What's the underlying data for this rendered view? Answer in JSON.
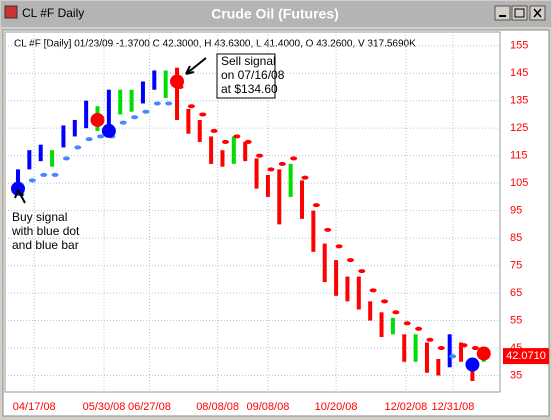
{
  "window_title": "CL #F Daily",
  "chart_data": {
    "type": "ohlc",
    "title": "Crude Oil (Futures)",
    "info": "CL #F [Daily] 01/23/09 -1.3700 C 42.3000, H 43.6300, L 41.4000, O 43.2600, V 317.5690K",
    "x": [
      "2008-04-07",
      "2008-04-14",
      "2008-04-21",
      "2008-04-28",
      "2008-05-05",
      "2008-05-12",
      "2008-05-19",
      "2008-05-26",
      "2008-06-02",
      "2008-06-09",
      "2008-06-16",
      "2008-06-23",
      "2008-06-30",
      "2008-07-07",
      "2008-07-14",
      "2008-07-21",
      "2008-07-28",
      "2008-08-04",
      "2008-08-11",
      "2008-08-18",
      "2008-08-25",
      "2008-09-01",
      "2008-09-08",
      "2008-09-15",
      "2008-09-22",
      "2008-09-29",
      "2008-10-06",
      "2008-10-13",
      "2008-10-20",
      "2008-10-27",
      "2008-11-03",
      "2008-11-10",
      "2008-11-17",
      "2008-11-24",
      "2008-12-01",
      "2008-12-08",
      "2008-12-15",
      "2008-12-22",
      "2008-12-29",
      "2009-01-05",
      "2009-01-12",
      "2009-01-19"
    ],
    "high": [
      110,
      117,
      119,
      117,
      126,
      128,
      135,
      133,
      139,
      139,
      139,
      142,
      146,
      146,
      147,
      132,
      128,
      122,
      117,
      122,
      120,
      114,
      108,
      110,
      112,
      106,
      95,
      83,
      77,
      71,
      71,
      62,
      58,
      56,
      50,
      50,
      47,
      41,
      50,
      47,
      40,
      44
    ],
    "low": [
      104,
      110,
      113,
      111,
      118,
      122,
      125,
      124,
      124,
      130,
      131,
      134,
      139,
      136,
      128,
      123,
      120,
      112,
      111,
      112,
      113,
      103,
      100,
      90,
      100,
      92,
      80,
      69,
      64,
      62,
      59,
      55,
      49,
      50,
      40,
      40,
      36,
      35,
      38,
      40,
      33,
      40
    ],
    "colors": [
      "#0000ff",
      "#0000ff",
      "#0000ff",
      "#00dd00",
      "#0000ff",
      "#0000ff",
      "#0000ff",
      "#00dd00",
      "#0000ff",
      "#00dd00",
      "#00dd00",
      "#0000ff",
      "#0000ff",
      "#00dd00",
      "#ff0000",
      "#ff0000",
      "#ff0000",
      "#ff0000",
      "#ff0000",
      "#00dd00",
      "#ff0000",
      "#ff0000",
      "#ff0000",
      "#ff0000",
      "#00dd00",
      "#ff0000",
      "#ff0000",
      "#ff0000",
      "#ff0000",
      "#ff0000",
      "#ff0000",
      "#ff0000",
      "#ff0000",
      "#00dd00",
      "#ff0000",
      "#00dd00",
      "#ff0000",
      "#ff0000",
      "#0000ff",
      "#ff0000",
      "#ff0000",
      "#00dd00"
    ],
    "stops": [
      101,
      106,
      108,
      108,
      114,
      118,
      121,
      122,
      122,
      127,
      129,
      131,
      134,
      134,
      140,
      133,
      130,
      124,
      120,
      122,
      120,
      115,
      110,
      112,
      114,
      107,
      97,
      88,
      82,
      77,
      73,
      66,
      62,
      58,
      54,
      52,
      48,
      45,
      42,
      46,
      45,
      44
    ],
    "stop_colors": [
      "#4488ff",
      "#4488ff",
      "#4488ff",
      "#4488ff",
      "#4488ff",
      "#4488ff",
      "#4488ff",
      "#4488ff",
      "#4488ff",
      "#4488ff",
      "#4488ff",
      "#4488ff",
      "#4488ff",
      "#4488ff",
      "#ff0000",
      "#ff0000",
      "#ff0000",
      "#ff0000",
      "#ff0000",
      "#ff0000",
      "#ff0000",
      "#ff0000",
      "#ff0000",
      "#ff0000",
      "#ff0000",
      "#ff0000",
      "#ff0000",
      "#ff0000",
      "#ff0000",
      "#ff0000",
      "#ff0000",
      "#ff0000",
      "#ff0000",
      "#ff0000",
      "#ff0000",
      "#ff0000",
      "#ff0000",
      "#ff0000",
      "#4488ff",
      "#ff0000",
      "#ff0000",
      "#ff0000"
    ],
    "signals": [
      {
        "x": "2008-04-07",
        "value": 103,
        "color": "#0000ff"
      },
      {
        "x": "2008-05-26",
        "value": 128,
        "color": "#ff0000"
      },
      {
        "x": "2008-06-02",
        "value": 124,
        "color": "#0000ff"
      },
      {
        "x": "2008-07-14",
        "value": 142,
        "color": "#ff0000"
      },
      {
        "x": "2009-01-12",
        "value": 39,
        "color": "#0000ff"
      },
      {
        "x": "2009-01-19",
        "value": 43,
        "color": "#ff0000"
      }
    ],
    "annotations": [
      {
        "lines": [
          "Buy signal",
          "with blue dot",
          "and blue bar"
        ]
      },
      {
        "lines": [
          "Sell signal",
          "on 07/16/08",
          "at $134.60"
        ]
      }
    ],
    "last_price": {
      "value": 42.071,
      "label": "42.0710"
    },
    "xlim": [
      "2008-03-30",
      "2009-01-29"
    ],
    "xticks": [
      {
        "value": "2008-04-17",
        "label": "04/17/08"
      },
      {
        "value": "2008-05-30",
        "label": "05/30/08"
      },
      {
        "value": "2008-06-27",
        "label": "06/27/08"
      },
      {
        "value": "2008-08-08",
        "label": "08/08/08"
      },
      {
        "value": "2008-09-08",
        "label": "09/08/08"
      },
      {
        "value": "2008-10-20",
        "label": "10/20/08"
      },
      {
        "value": "2008-12-02",
        "label": "12/02/08"
      },
      {
        "value": "2008-12-31",
        "label": "12/31/08"
      }
    ],
    "ylim": [
      29,
      160
    ],
    "yticks": [
      35,
      45,
      55,
      65,
      75,
      85,
      95,
      105,
      115,
      125,
      135,
      145,
      155
    ],
    "grid": true
  }
}
